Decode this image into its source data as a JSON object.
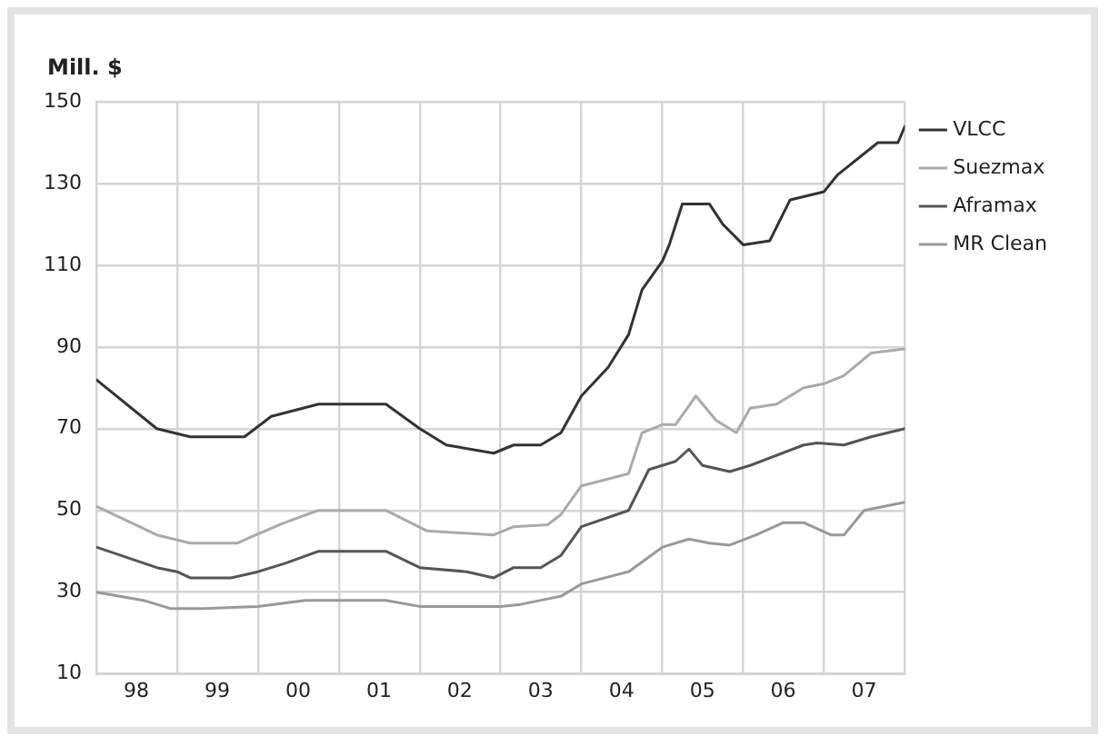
{
  "chart_data": {
    "type": "line",
    "ylabel": "Mill. $",
    "xlim": [
      "1998-01",
      "2008-01"
    ],
    "xticks": [
      {
        "value": "1998-01",
        "label": null
      },
      {
        "value": "1998-07",
        "label": "98"
      },
      {
        "value": "1999-01",
        "label": null
      },
      {
        "value": "1999-07",
        "label": "99"
      },
      {
        "value": "2000-01",
        "label": null
      },
      {
        "value": "2000-07",
        "label": "00"
      },
      {
        "value": "2001-01",
        "label": null
      },
      {
        "value": "2001-07",
        "label": "01"
      },
      {
        "value": "2002-01",
        "label": null
      },
      {
        "value": "2002-07",
        "label": "02"
      },
      {
        "value": "2003-01",
        "label": null
      },
      {
        "value": "2003-07",
        "label": "03"
      },
      {
        "value": "2004-01",
        "label": null
      },
      {
        "value": "2004-07",
        "label": "04"
      },
      {
        "value": "2005-01",
        "label": null
      },
      {
        "value": "2005-07",
        "label": "05"
      },
      {
        "value": "2006-01",
        "label": null
      },
      {
        "value": "2006-07",
        "label": "06"
      },
      {
        "value": "2007-01",
        "label": null
      },
      {
        "value": "2007-07",
        "label": "07"
      },
      {
        "value": "2008-01",
        "label": null
      }
    ],
    "ylim": [
      10,
      150
    ],
    "yticks": [
      10,
      30,
      50,
      70,
      90,
      110,
      130,
      150
    ],
    "grid": true,
    "legend": "right",
    "marker": "none",
    "line_style": "solid",
    "series": [
      {
        "name": "VLCC",
        "color": "#333333",
        "x": [
          "1998-01",
          "1998-10",
          "1999-03",
          "1999-11",
          "2000-03",
          "2000-10",
          "2001-08",
          "2002-01",
          "2002-05",
          "2002-12",
          "2003-03",
          "2003-07",
          "2003-10",
          "2004-01",
          "2004-05",
          "2004-08",
          "2004-10",
          "2005-01",
          "2005-02",
          "2005-04",
          "2005-08",
          "2005-10",
          "2006-01",
          "2006-05",
          "2006-08",
          "2007-01",
          "2007-03",
          "2007-09",
          "2007-12",
          "2008-01"
        ],
        "values": [
          82,
          70,
          68,
          68,
          73,
          76,
          76,
          70,
          66,
          64,
          66,
          66,
          69,
          78,
          85,
          93,
          104,
          111,
          115,
          125,
          125,
          120,
          115,
          116,
          126,
          128,
          132,
          140,
          140,
          144
        ]
      },
      {
        "name": "Suezmax",
        "color": "#aaaaaa",
        "x": [
          "1998-01",
          "1998-10",
          "1999-03",
          "1999-10",
          "1999-12",
          "2000-05",
          "2000-10",
          "2001-08",
          "2002-02",
          "2002-12",
          "2003-03",
          "2003-08",
          "2003-10",
          "2004-01",
          "2004-08",
          "2004-10",
          "2005-01",
          "2005-03",
          "2005-06",
          "2005-09",
          "2005-12",
          "2006-02",
          "2006-06",
          "2006-10",
          "2007-01",
          "2007-04",
          "2007-08",
          "2008-01"
        ],
        "values": [
          51,
          44,
          42,
          42,
          43.5,
          47,
          50,
          50,
          45,
          44,
          46,
          46.5,
          49,
          56,
          59,
          69,
          71,
          71,
          78,
          72,
          69,
          75,
          76,
          80,
          81,
          83,
          88.5,
          89.5
        ]
      },
      {
        "name": "Aframax",
        "color": "#555555",
        "x": [
          "1998-01",
          "1998-10",
          "1999-01",
          "1999-03",
          "1999-09",
          "2000-01",
          "2000-05",
          "2000-10",
          "2001-08",
          "2002-01",
          "2002-08",
          "2002-12",
          "2003-03",
          "2003-07",
          "2003-10",
          "2004-01",
          "2004-08",
          "2004-11",
          "2005-03",
          "2005-05",
          "2005-07",
          "2005-11",
          "2006-02",
          "2006-10",
          "2006-12",
          "2007-04",
          "2007-08",
          "2008-01"
        ],
        "values": [
          41,
          36,
          35,
          33.5,
          33.5,
          35,
          37,
          40,
          40,
          36,
          35,
          33.5,
          36,
          36,
          39,
          46,
          50,
          60,
          62,
          65,
          61,
          59.5,
          61,
          66,
          66.5,
          66,
          68,
          70
        ]
      },
      {
        "name": "MR Clean",
        "color": "#999999",
        "x": [
          "1998-01",
          "1998-08",
          "1998-12",
          "1999-05",
          "2000-01",
          "2000-08",
          "2001-08",
          "2002-01",
          "2003-01",
          "2003-04",
          "2003-10",
          "2004-01",
          "2004-08",
          "2005-01",
          "2005-05",
          "2005-08",
          "2005-11",
          "2006-03",
          "2006-07",
          "2006-10",
          "2007-02",
          "2007-04",
          "2007-07",
          "2008-01"
        ],
        "values": [
          30,
          28,
          26,
          26,
          26.5,
          28,
          28,
          26.5,
          26.5,
          27,
          29,
          32,
          35,
          41,
          43,
          42,
          41.5,
          44,
          47,
          47,
          44,
          44,
          50,
          52
        ]
      }
    ]
  }
}
